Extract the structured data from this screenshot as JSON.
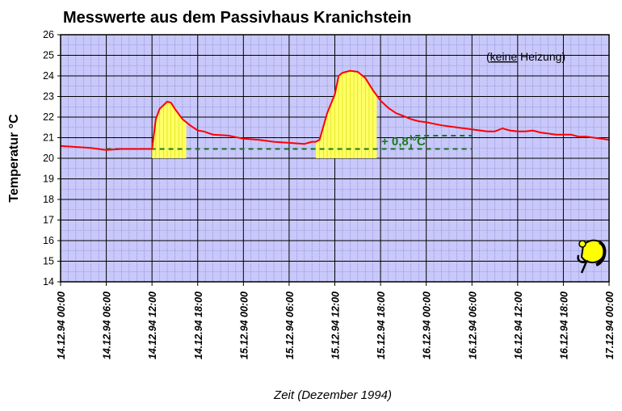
{
  "chart_data": {
    "type": "line",
    "title": "Messwerte aus dem Passivhaus Kranichstein",
    "xlabel": "Zeit (Dezember 1994)",
    "ylabel": "Temperatur °C",
    "ylim": [
      14,
      26
    ],
    "yticks": [
      14,
      15,
      16,
      17,
      18,
      19,
      20,
      21,
      22,
      23,
      24,
      25,
      26
    ],
    "xlim": [
      0,
      72
    ],
    "xtick_labels": [
      "14.12.94  00:00",
      "14.12.94  06:00",
      "14.12.94  12:00",
      "14.12.94  18:00",
      "15.12.94  00:00",
      "15.12.94  06:00",
      "15.12.94  12:00",
      "15.12.94  18:00",
      "16.12.94  00:00",
      "16.12.94  06:00",
      "16.12.94  12:00",
      "16.12.94  18:00",
      "17.12.94  00:00"
    ],
    "grid": true,
    "series": [
      {
        "name": "Temperatur",
        "color": "#ff0000",
        "x": [
          0,
          2,
          4,
          6,
          8,
          10,
          12,
          12.5,
          13,
          14,
          14.5,
          15,
          16,
          17,
          18,
          18.8,
          20,
          22,
          24,
          26,
          28,
          30,
          32,
          33,
          33.5,
          34,
          35,
          36,
          36.5,
          37,
          38,
          39,
          40,
          41,
          42,
          43,
          44,
          45,
          46,
          47,
          48,
          50,
          52,
          54,
          56,
          57,
          58,
          59,
          60,
          61,
          62,
          63,
          64,
          65,
          66,
          67,
          68,
          69,
          70,
          71,
          72
        ],
        "y": [
          20.6,
          20.55,
          20.5,
          20.4,
          20.45,
          20.45,
          20.45,
          21.9,
          22.4,
          22.75,
          22.7,
          22.4,
          21.9,
          21.6,
          21.35,
          21.3,
          21.15,
          21.1,
          20.95,
          20.9,
          20.8,
          20.75,
          20.7,
          20.8,
          20.8,
          20.9,
          22.2,
          23.1,
          24.0,
          24.15,
          24.25,
          24.2,
          23.9,
          23.3,
          22.8,
          22.45,
          22.2,
          22.05,
          21.9,
          21.8,
          21.75,
          21.6,
          21.5,
          21.4,
          21.3,
          21.3,
          21.45,
          21.35,
          21.3,
          21.3,
          21.35,
          21.25,
          21.2,
          21.15,
          21.15,
          21.15,
          21.05,
          21.05,
          21.0,
          20.95,
          20.9
        ]
      }
    ],
    "baseline": {
      "value": 20.45,
      "x_start": 6,
      "x_end": 54,
      "style": "dashed",
      "color": "#1a7a1a"
    },
    "step_line": {
      "from": [
        46,
        20.45
      ],
      "to": [
        46,
        21.1
      ],
      "end": [
        54,
        21.1
      ]
    },
    "highlight_regions": [
      {
        "x_start": 12,
        "x_end": 16.5,
        "color": "#ffff66"
      },
      {
        "x_start": 33.5,
        "x_end": 41.5,
        "color": "#ffff66"
      }
    ],
    "annotations": [
      {
        "text": "+ 0,8 °C",
        "color": "#1a7a1a"
      },
      {
        "text_prefix": "(",
        "text_underlined": "keine",
        "text_suffix": " Heizung)"
      }
    ]
  },
  "colors": {
    "plot_background": "#c8c8fa",
    "grid_major": "#000000",
    "grid_minor": "#7878c8",
    "line": "#ff0000",
    "fill": "#ffff66",
    "annotation": "#1a7a1a"
  },
  "logo": {
    "icon": "passivhaus-logo-icon"
  }
}
